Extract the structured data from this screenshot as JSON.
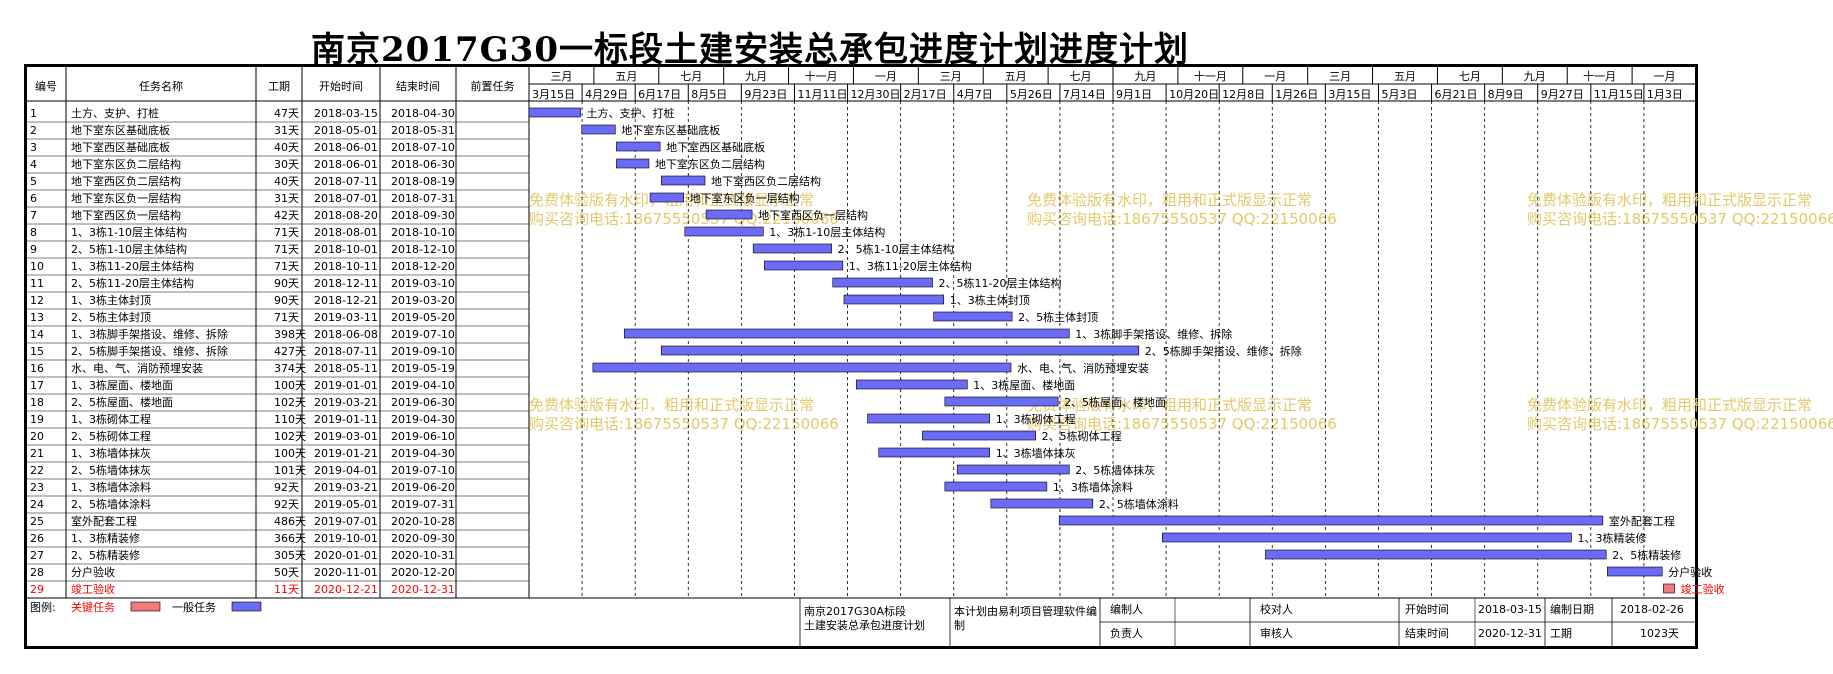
{
  "title": "南京2017G30一标段土建安装总承包进度计划进度计划",
  "columns": [
    "编号",
    "任务名称",
    "工期",
    "开始时间",
    "结束时间",
    "前置任务"
  ],
  "timeline": {
    "start": "2018-03-15",
    "end": "2021-01-20",
    "months": [
      "三月",
      "五月",
      "七月",
      "九月",
      "十一月",
      "一月",
      "三月",
      "五月",
      "七月",
      "九月",
      "十一月",
      "一月",
      "三月",
      "五月",
      "七月",
      "九月",
      "十一月",
      "一月"
    ],
    "dates": [
      "3月15日",
      "4月29日",
      "6月17日",
      "8月5日",
      "9月23日",
      "11月11日",
      "12月30日",
      "2月17日",
      "4月7日",
      "5月26日",
      "7月14日",
      "9月1日",
      "10月20日",
      "12月8日",
      "1月26日",
      "3月15日",
      "5月3日",
      "6月21日",
      "8月9日",
      "9月27日",
      "11月15日",
      "1月3日"
    ]
  },
  "tasks": [
    {
      "id": "1",
      "name": "土方、支护、打桩",
      "duration": "47天",
      "start": "2018-03-15",
      "end": "2018-04-30",
      "critical": false
    },
    {
      "id": "2",
      "name": "地下室东区基础底板",
      "duration": "31天",
      "start": "2018-05-01",
      "end": "2018-05-31",
      "critical": false
    },
    {
      "id": "3",
      "name": "地下室西区基础底板",
      "duration": "40天",
      "start": "2018-06-01",
      "end": "2018-07-10",
      "critical": false
    },
    {
      "id": "4",
      "name": "地下室东区负二层结构",
      "duration": "30天",
      "start": "2018-06-01",
      "end": "2018-06-30",
      "critical": false
    },
    {
      "id": "5",
      "name": "地下室西区负二层结构",
      "duration": "40天",
      "start": "2018-07-11",
      "end": "2018-08-19",
      "critical": false
    },
    {
      "id": "6",
      "name": "地下室东区负一层结构",
      "duration": "31天",
      "start": "2018-07-01",
      "end": "2018-07-31",
      "critical": false
    },
    {
      "id": "7",
      "name": "地下室西区负一层结构",
      "duration": "42天",
      "start": "2018-08-20",
      "end": "2018-09-30",
      "critical": false
    },
    {
      "id": "8",
      "name": "1、3栋1-10层主体结构",
      "duration": "71天",
      "start": "2018-08-01",
      "end": "2018-10-10",
      "critical": false
    },
    {
      "id": "9",
      "name": "2、5栋1-10层主体结构",
      "duration": "71天",
      "start": "2018-10-01",
      "end": "2018-12-10",
      "critical": false
    },
    {
      "id": "10",
      "name": "1、3栋11-20层主体结构",
      "duration": "71天",
      "start": "2018-10-11",
      "end": "2018-12-20",
      "critical": false
    },
    {
      "id": "11",
      "name": "2、5栋11-20层主体结构",
      "duration": "90天",
      "start": "2018-12-11",
      "end": "2019-03-10",
      "critical": false
    },
    {
      "id": "12",
      "name": "1、3栋主体封顶",
      "duration": "90天",
      "start": "2018-12-21",
      "end": "2019-03-20",
      "critical": false
    },
    {
      "id": "13",
      "name": "2、5栋主体封顶",
      "duration": "71天",
      "start": "2019-03-11",
      "end": "2019-05-20",
      "critical": false
    },
    {
      "id": "14",
      "name": "1、3栋脚手架搭设、维修、拆除",
      "duration": "398天",
      "start": "2018-06-08",
      "end": "2019-07-10",
      "critical": false
    },
    {
      "id": "15",
      "name": "2、5栋脚手架搭设、维修、拆除",
      "duration": "427天",
      "start": "2018-07-11",
      "end": "2019-09-10",
      "critical": false
    },
    {
      "id": "16",
      "name": "水、电、气、消防预埋安装",
      "duration": "374天",
      "start": "2018-05-11",
      "end": "2019-05-19",
      "critical": false
    },
    {
      "id": "17",
      "name": "1、3栋屋面、楼地面",
      "duration": "100天",
      "start": "2019-01-01",
      "end": "2019-04-10",
      "critical": false
    },
    {
      "id": "18",
      "name": "2、5栋屋面、楼地面",
      "duration": "102天",
      "start": "2019-03-21",
      "end": "2019-06-30",
      "critical": false
    },
    {
      "id": "19",
      "name": "1、3栋砌体工程",
      "duration": "110天",
      "start": "2019-01-11",
      "end": "2019-04-30",
      "critical": false
    },
    {
      "id": "20",
      "name": "2、5栋砌体工程",
      "duration": "102天",
      "start": "2019-03-01",
      "end": "2019-06-10",
      "critical": false
    },
    {
      "id": "21",
      "name": "1、3栋墙体抹灰",
      "duration": "100天",
      "start": "2019-01-21",
      "end": "2019-04-30",
      "critical": false
    },
    {
      "id": "22",
      "name": "2、5栋墙体抹灰",
      "duration": "101天",
      "start": "2019-04-01",
      "end": "2019-07-10",
      "critical": false
    },
    {
      "id": "23",
      "name": "1、3栋墙体涂料",
      "duration": "92天",
      "start": "2019-03-21",
      "end": "2019-06-20",
      "critical": false
    },
    {
      "id": "24",
      "name": "2、5栋墙体涂料",
      "duration": "92天",
      "start": "2019-05-01",
      "end": "2019-07-31",
      "critical": false
    },
    {
      "id": "25",
      "name": "室外配套工程",
      "duration": "486天",
      "start": "2019-07-01",
      "end": "2020-10-28",
      "critical": false
    },
    {
      "id": "26",
      "name": "1、3栋精装修",
      "duration": "366天",
      "start": "2019-10-01",
      "end": "2020-09-30",
      "critical": false
    },
    {
      "id": "27",
      "name": "2、5栋精装修",
      "duration": "305天",
      "start": "2020-01-01",
      "end": "2020-10-31",
      "critical": false
    },
    {
      "id": "28",
      "name": "分户验收",
      "duration": "50天",
      "start": "2020-11-01",
      "end": "2020-12-20",
      "critical": false
    },
    {
      "id": "29",
      "name": "竣工验收",
      "duration": "11天",
      "start": "2020-12-21",
      "end": "2020-12-31",
      "critical": true
    }
  ],
  "watermark": [
    "免费体验版有水印，粗用和正式版显示正常",
    "购买咨询电话:18675550537 QQ:22150066"
  ],
  "legend": {
    "label": "图例:",
    "critical": "关键任务",
    "normal": "一般任务"
  },
  "footer": {
    "project_name": "南京2017G30A标段土建安装总承包进度计划",
    "software_note": "本计划由易利项目管理软件编制",
    "editor_label": "编制人",
    "checker_label": "校对人",
    "owner_label": "负责人",
    "auditor_label": "审核人",
    "start_label": "开始时间",
    "start_value": "2018-03-15",
    "end_label": "结束时间",
    "end_value": "2020-12-31",
    "date_label": "编制日期",
    "date_value": "2018-02-26",
    "period_label": "工期",
    "period_value": "1023天"
  },
  "colors": {
    "normal_bar": "#6b6bf5",
    "critical_bar": "#f27a7a",
    "critical_text": "#ff0000",
    "watermark": "#e3c96a"
  }
}
